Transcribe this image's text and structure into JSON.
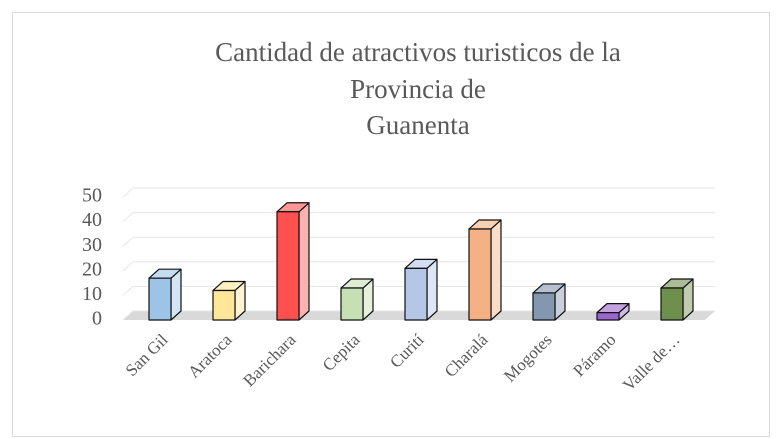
{
  "chart_data": {
    "type": "bar3d",
    "title": [
      "Cantidad de atractivos turisticos de la",
      "Provincia de",
      "Guanenta"
    ],
    "categories": [
      "San Gil",
      "Aratoca",
      "Barichara",
      "Cepita",
      "Curití",
      "Charalá",
      "Mogotes",
      "Páramo",
      "Valle de…"
    ],
    "values": [
      17,
      12,
      44,
      13,
      21,
      37,
      11,
      3,
      13
    ],
    "colors": [
      "#9dc3e6",
      "#ffe699",
      "#ff5050",
      "#c6e0b4",
      "#b4c7e7",
      "#f4b183",
      "#8497b0",
      "#9966cc",
      "#6f8f4f"
    ],
    "ylim": [
      0,
      50
    ],
    "yticks": [
      0,
      10,
      20,
      30,
      40,
      50
    ],
    "grid": true
  }
}
